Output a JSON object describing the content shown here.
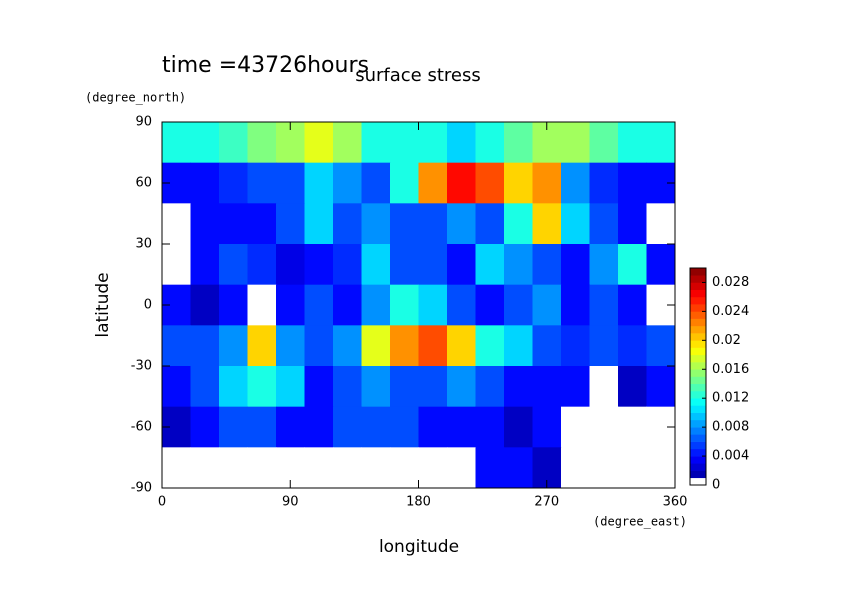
{
  "chart_data": {
    "type": "heatmap",
    "title": "surface stress",
    "subtitle": "time =43726hours",
    "x_label": "longitude",
    "y_label": "latitude",
    "x_unit": "(degree_east)",
    "y_unit": "(degree_north)",
    "xlim": [
      0,
      360
    ],
    "ylim": [
      -90,
      90
    ],
    "xticks": [
      0,
      90,
      180,
      270,
      360
    ],
    "yticks": [
      -90,
      -60,
      -30,
      0,
      30,
      60,
      90
    ],
    "colormap": "jet",
    "clim": [
      0,
      0.03
    ],
    "cticks": [
      0,
      0.004,
      0.008,
      0.012,
      0.016,
      0.02,
      0.024,
      0.028
    ],
    "x": [
      10,
      30,
      50,
      70,
      90,
      110,
      130,
      150,
      170,
      190,
      210,
      230,
      250,
      270,
      290,
      310,
      330,
      350
    ],
    "y": [
      80,
      60,
      40,
      20,
      0,
      -20,
      -40,
      -60,
      -80
    ],
    "z": [
      [
        0.012,
        0.012,
        0.013,
        0.015,
        0.016,
        0.018,
        0.016,
        0.012,
        0.012,
        0.012,
        0.01,
        0.012,
        0.014,
        0.016,
        0.016,
        0.014,
        0.012,
        0.012
      ],
      [
        0.004,
        0.004,
        0.005,
        0.006,
        0.006,
        0.01,
        0.008,
        0.006,
        0.012,
        0.022,
        0.026,
        0.024,
        0.02,
        0.022,
        0.008,
        0.005,
        0.004,
        0.004
      ],
      [
        0,
        0.004,
        0.004,
        0.004,
        0.006,
        0.01,
        0.006,
        0.008,
        0.006,
        0.006,
        0.008,
        0.006,
        0.012,
        0.02,
        0.01,
        0.006,
        0.004,
        0
      ],
      [
        0,
        0.004,
        0.006,
        0.005,
        0.003,
        0.004,
        0.005,
        0.01,
        0.006,
        0.006,
        0.004,
        0.01,
        0.008,
        0.006,
        0.004,
        0.008,
        0.012,
        0.004
      ],
      [
        0.004,
        0.002,
        0.004,
        0,
        0.004,
        0.006,
        0.004,
        0.008,
        0.012,
        0.01,
        0.006,
        0.004,
        0.006,
        0.008,
        0.004,
        0.006,
        0.004,
        0
      ],
      [
        0.006,
        0.006,
        0.008,
        0.02,
        0.008,
        0.006,
        0.008,
        0.018,
        0.022,
        0.024,
        0.02,
        0.012,
        0.01,
        0.006,
        0.005,
        0.006,
        0.005,
        0.006
      ],
      [
        0.004,
        0.006,
        0.01,
        0.012,
        0.01,
        0.004,
        0.006,
        0.008,
        0.006,
        0.006,
        0.008,
        0.006,
        0.004,
        0.004,
        0.004,
        0,
        0.002,
        0.004
      ],
      [
        0.002,
        0.004,
        0.006,
        0.006,
        0.004,
        0.004,
        0.006,
        0.006,
        0.006,
        0.004,
        0.004,
        0.004,
        0.002,
        0.004,
        0,
        0,
        0,
        0
      ],
      [
        0,
        0,
        0,
        0,
        0,
        0,
        0,
        0,
        0,
        0,
        0,
        0.004,
        0.004,
        0.002,
        0,
        0,
        0,
        0
      ]
    ]
  }
}
